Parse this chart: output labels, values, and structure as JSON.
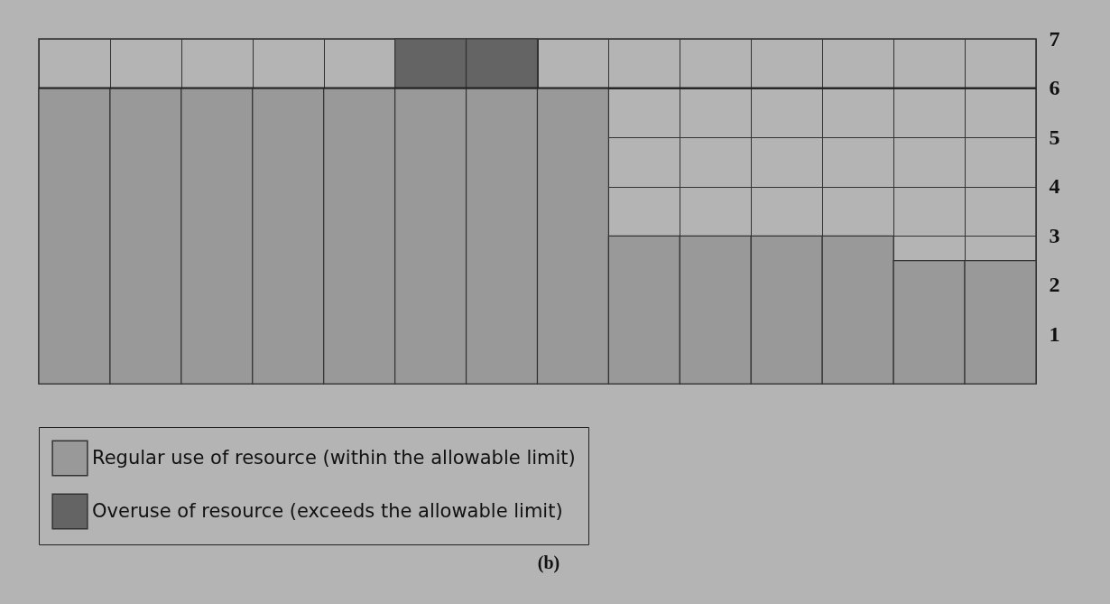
{
  "chart_data": {
    "type": "bar",
    "stacked": true,
    "categories": [
      null,
      null,
      null,
      null,
      null,
      null,
      null,
      null,
      null,
      null,
      null,
      null,
      null,
      null
    ],
    "series": [
      {
        "name": "Regular use of resource (within the allowable limit)",
        "color": "#999999",
        "values": [
          6,
          6,
          6,
          6,
          6,
          6,
          6,
          6,
          3,
          3,
          3,
          3,
          2.5,
          2.5
        ]
      },
      {
        "name": "Overuse of resource (exceeds the allowable limit)",
        "color": "#646464",
        "values": [
          null,
          null,
          null,
          null,
          null,
          1,
          1,
          null,
          null,
          null,
          null,
          null,
          null,
          null
        ]
      }
    ],
    "ylim": [
      0,
      7
    ],
    "yticks": [
      1,
      2,
      3,
      4,
      5,
      6,
      7
    ],
    "grid": true,
    "legend": "bottom left",
    "ref_lines": [
      {
        "axis": "y",
        "value": 6,
        "color": "#222222"
      }
    ],
    "annotations": [
      "(b)"
    ]
  }
}
